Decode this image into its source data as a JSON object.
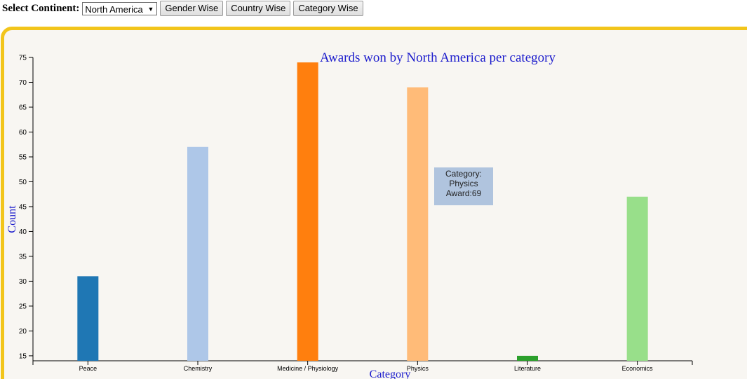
{
  "controls": {
    "select_label": "Select Continent:",
    "continent_selected": "North America",
    "gender_button": "Gender Wise",
    "country_button": "Country Wise",
    "category_button": "Category Wise"
  },
  "colors": {
    "panel_border": "#f2c51b",
    "panel_background": "#f8f6f2",
    "title_color": "#1a1acc",
    "tooltip_background": "#b0c4de"
  },
  "tooltip": {
    "line1": "Category:",
    "line2": "Physics",
    "line3": "Award:69"
  },
  "chart_data": {
    "type": "bar",
    "title": "Awards won by North America per category",
    "xlabel": "Category",
    "ylabel": "Count",
    "categories": [
      "Peace",
      "Chemistry",
      "Medicine / Physiology",
      "Physics",
      "Literature",
      "Economics"
    ],
    "values": [
      31,
      57,
      74,
      69,
      15,
      47
    ],
    "colors": [
      "#1f77b4",
      "#aec7e8",
      "#ff7f0e",
      "#ffbb78",
      "#2ca02c",
      "#98df8a"
    ],
    "ylim": [
      14,
      75
    ],
    "yticks": [
      15,
      20,
      25,
      30,
      35,
      40,
      45,
      50,
      55,
      60,
      65,
      70,
      75
    ],
    "grid": false,
    "legend": "none"
  }
}
